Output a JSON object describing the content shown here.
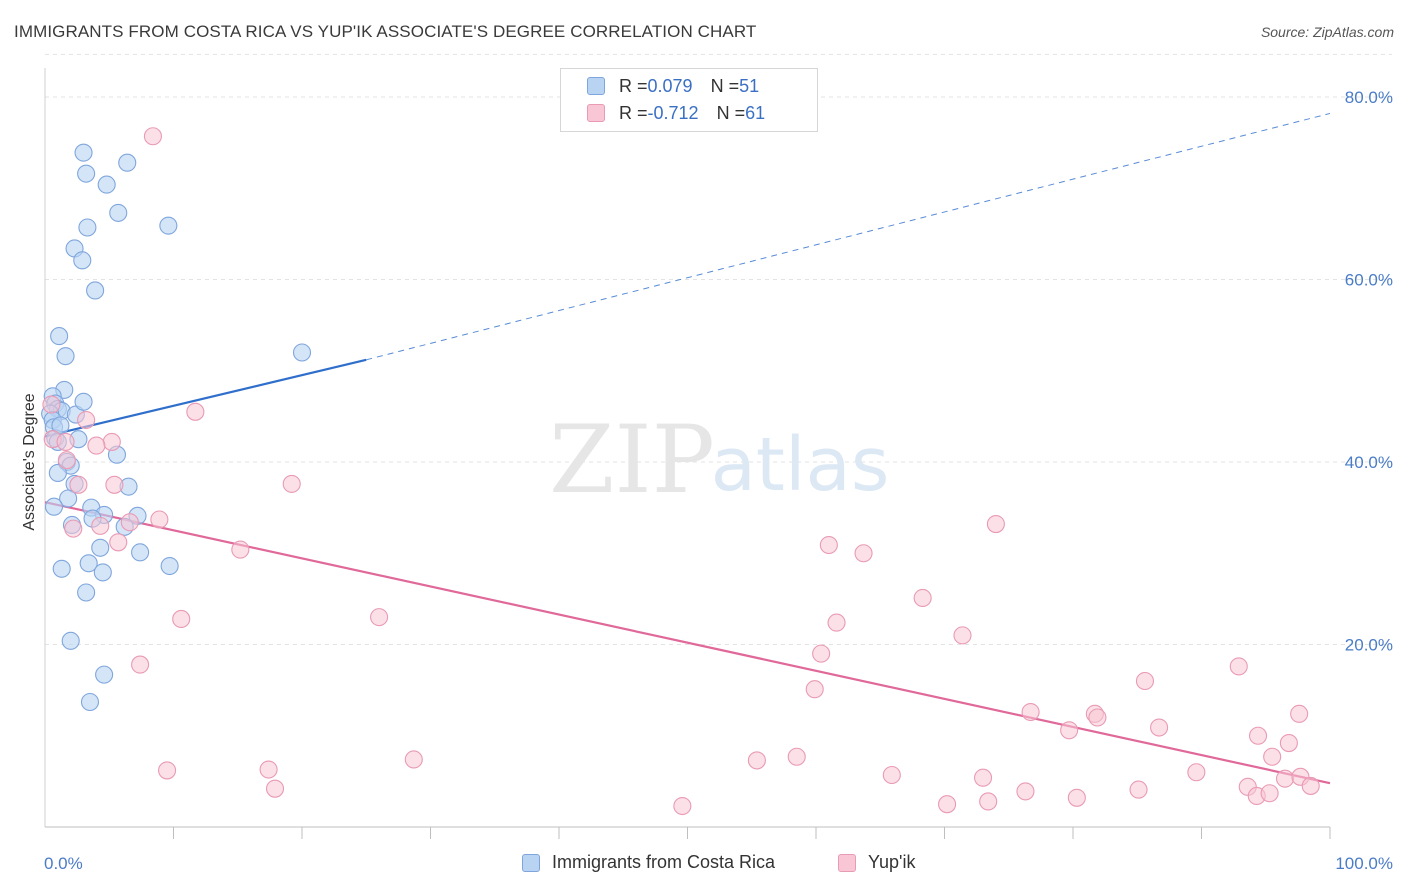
{
  "header": {
    "title": "IMMIGRANTS FROM COSTA RICA VS YUP'IK ASSOCIATE'S DEGREE CORRELATION CHART",
    "source": "Source: ZipAtlas.com"
  },
  "watermark": {
    "zip": "ZIP",
    "atlas": "atlas"
  },
  "legend": {
    "rows": [
      {
        "r_label": "R = ",
        "r_value": "0.079",
        "n_label": "N = ",
        "n_value": "51"
      },
      {
        "r_label": "R = ",
        "r_value": "-0.712",
        "n_label": "N = ",
        "n_value": "61"
      }
    ]
  },
  "bottom_legend": {
    "series1": "Immigrants from Costa Rica",
    "series2": "Yup'ik"
  },
  "colors": {
    "blue_fill": "#b9d3f3",
    "blue_stroke": "#7fa6dc",
    "blue_line": "#2f6fcb",
    "pink_fill": "#f8c6d4",
    "pink_stroke": "#e99ab4",
    "pink_line": "#e0699a",
    "tick_text": "#4a7cc7",
    "grid": "#e3e3e3"
  },
  "chart_data": {
    "type": "scatter",
    "xlabel": "",
    "ylabel": "Associate's Degree",
    "xlim": [
      0,
      100
    ],
    "ylim": [
      0,
      85
    ],
    "y_ticks": [
      20,
      40,
      60,
      80
    ],
    "y_tick_labels": [
      "20.0%",
      "40.0%",
      "60.0%",
      "80.0%"
    ],
    "x_tick_labels_shown": [
      "0.0%",
      "100.0%"
    ],
    "grid": true,
    "legend_position": "top-center",
    "series": [
      {
        "name": "Immigrants from Costa Rica",
        "R": 0.079,
        "N": 51,
        "trend": {
          "x0": 0,
          "y0": 42.8,
          "x1": 25,
          "y1": 51.2,
          "dashed_to_x": 100,
          "dashed_to_y": 78.2
        },
        "points": [
          [
            3.0,
            73.9
          ],
          [
            3.2,
            71.6
          ],
          [
            6.4,
            72.8
          ],
          [
            4.8,
            70.4
          ],
          [
            5.7,
            67.3
          ],
          [
            9.6,
            65.9
          ],
          [
            3.3,
            65.7
          ],
          [
            2.3,
            63.4
          ],
          [
            2.9,
            62.1
          ],
          [
            3.9,
            58.8
          ],
          [
            20.0,
            52.0
          ],
          [
            1.1,
            53.8
          ],
          [
            1.6,
            51.6
          ],
          [
            1.5,
            47.9
          ],
          [
            0.6,
            47.2
          ],
          [
            0.8,
            46.4
          ],
          [
            1.0,
            45.8
          ],
          [
            1.3,
            45.6
          ],
          [
            2.4,
            45.2
          ],
          [
            3.0,
            46.6
          ],
          [
            0.4,
            45.3
          ],
          [
            0.6,
            44.6
          ],
          [
            0.7,
            43.8
          ],
          [
            0.8,
            42.6
          ],
          [
            1.0,
            42.2
          ],
          [
            2.6,
            42.5
          ],
          [
            5.6,
            40.8
          ],
          [
            1.7,
            40.0
          ],
          [
            2.0,
            39.6
          ],
          [
            1.0,
            38.8
          ],
          [
            2.3,
            37.6
          ],
          [
            6.5,
            37.3
          ],
          [
            1.8,
            36.0
          ],
          [
            0.7,
            35.1
          ],
          [
            3.6,
            35.0
          ],
          [
            4.6,
            34.2
          ],
          [
            7.2,
            34.1
          ],
          [
            3.7,
            33.8
          ],
          [
            6.2,
            32.9
          ],
          [
            2.1,
            33.1
          ],
          [
            4.3,
            30.6
          ],
          [
            7.4,
            30.1
          ],
          [
            3.4,
            28.9
          ],
          [
            9.7,
            28.6
          ],
          [
            1.3,
            28.3
          ],
          [
            4.5,
            27.9
          ],
          [
            3.2,
            25.7
          ],
          [
            2.0,
            20.4
          ],
          [
            4.6,
            16.7
          ],
          [
            3.5,
            13.7
          ],
          [
            1.2,
            44.0
          ]
        ]
      },
      {
        "name": "Yup'ik",
        "R": -0.712,
        "N": 61,
        "trend": {
          "x0": 0,
          "y0": 35.6,
          "x1": 100,
          "y1": 4.8
        },
        "points": [
          [
            8.4,
            75.7
          ],
          [
            11.7,
            45.5
          ],
          [
            3.2,
            44.6
          ],
          [
            0.5,
            46.3
          ],
          [
            0.6,
            42.5
          ],
          [
            1.6,
            42.2
          ],
          [
            5.2,
            42.2
          ],
          [
            4.0,
            41.8
          ],
          [
            1.7,
            40.2
          ],
          [
            19.2,
            37.6
          ],
          [
            2.6,
            37.5
          ],
          [
            5.4,
            37.5
          ],
          [
            8.9,
            33.7
          ],
          [
            6.6,
            33.4
          ],
          [
            4.3,
            33.0
          ],
          [
            2.2,
            32.7
          ],
          [
            5.7,
            31.2
          ],
          [
            15.2,
            30.4
          ],
          [
            61.0,
            30.9
          ],
          [
            63.7,
            30.0
          ],
          [
            74.0,
            33.2
          ],
          [
            68.3,
            25.1
          ],
          [
            10.6,
            22.8
          ],
          [
            26.0,
            23.0
          ],
          [
            61.6,
            22.4
          ],
          [
            71.4,
            21.0
          ],
          [
            60.4,
            19.0
          ],
          [
            7.4,
            17.8
          ],
          [
            59.9,
            15.1
          ],
          [
            85.6,
            16.0
          ],
          [
            92.9,
            17.6
          ],
          [
            76.7,
            12.6
          ],
          [
            81.7,
            12.4
          ],
          [
            81.9,
            12.0
          ],
          [
            97.6,
            12.4
          ],
          [
            79.7,
            10.6
          ],
          [
            86.7,
            10.9
          ],
          [
            94.4,
            10.0
          ],
          [
            96.8,
            9.2
          ],
          [
            95.5,
            7.7
          ],
          [
            9.5,
            6.2
          ],
          [
            17.4,
            6.3
          ],
          [
            28.7,
            7.4
          ],
          [
            55.4,
            7.3
          ],
          [
            58.5,
            7.7
          ],
          [
            65.9,
            5.7
          ],
          [
            73.0,
            5.4
          ],
          [
            89.6,
            6.0
          ],
          [
            96.5,
            5.3
          ],
          [
            97.7,
            5.5
          ],
          [
            98.5,
            4.5
          ],
          [
            17.9,
            4.2
          ],
          [
            76.3,
            3.9
          ],
          [
            80.3,
            3.2
          ],
          [
            85.1,
            4.1
          ],
          [
            93.6,
            4.4
          ],
          [
            94.3,
            3.4
          ],
          [
            95.3,
            3.7
          ],
          [
            73.4,
            2.8
          ],
          [
            70.2,
            2.5
          ],
          [
            49.6,
            2.3
          ]
        ]
      }
    ]
  }
}
